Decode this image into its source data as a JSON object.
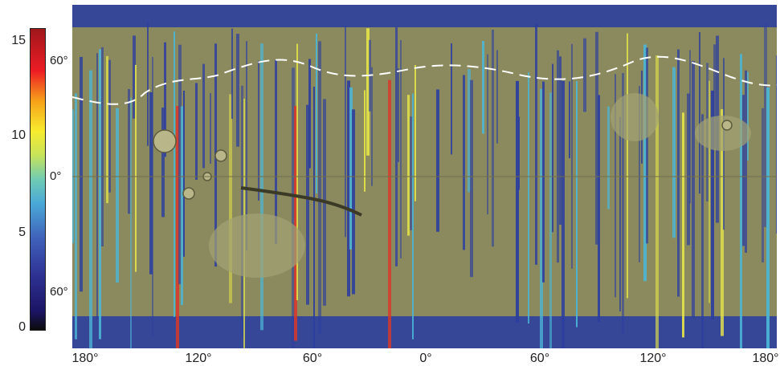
{
  "colorbar": {
    "ticks": [
      "15",
      "10",
      "5",
      "0"
    ],
    "colors": [
      "#0b0b0b",
      "#1b1464",
      "#2e3192",
      "#3f5fb8",
      "#4aa8d8",
      "#6fccb3",
      "#c7e35a",
      "#f7ec2e",
      "#f7a21a",
      "#ec1c24",
      "#a0171c"
    ]
  },
  "latitude_labels": [
    "60°",
    "0°",
    "60°"
  ],
  "longitude_labels": [
    "180°",
    "120°",
    "60°",
    "0°",
    "60°",
    "120°",
    "180°"
  ],
  "map": {
    "colors": {
      "terrain": "#8b8a5e",
      "terrain_light": "#a3a273",
      "coverage_low": "#2d3f9e",
      "coverage_mid": "#4bb6d6",
      "coverage_high": "#e2e24a",
      "coverage_peak": "#d8382a",
      "boundary_line": "#ffffff"
    }
  }
}
